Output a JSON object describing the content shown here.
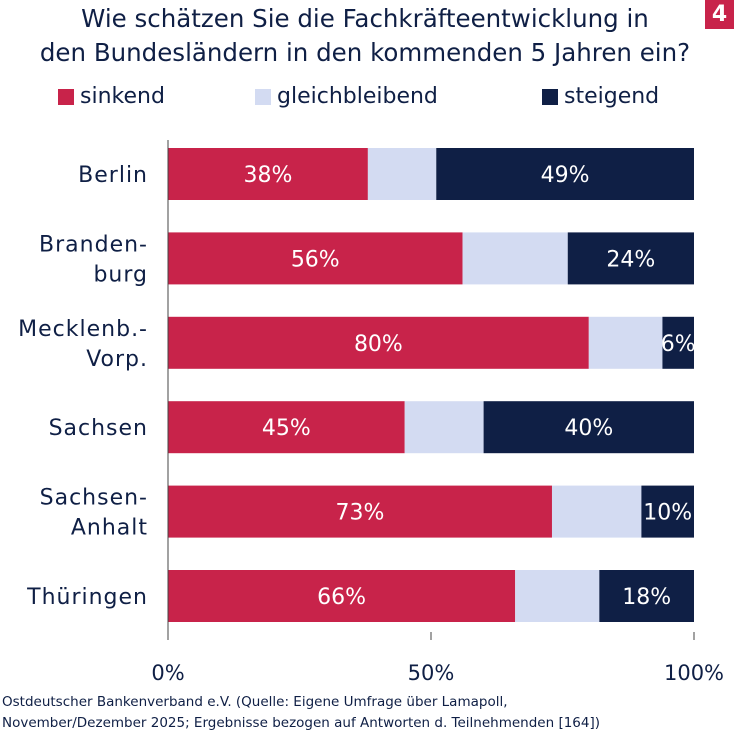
{
  "badge": "4",
  "chart_data": {
    "type": "bar",
    "orientation": "horizontal",
    "stacked": true,
    "title_lines": [
      "Wie schätzen Sie die Fachkräfteentwicklung in",
      "den Bundesländern in den kommenden 5 Jahren ein?"
    ],
    "categories": [
      [
        "Berlin"
      ],
      [
        "Branden-",
        "burg"
      ],
      [
        "Mecklenb.-",
        "Vorp."
      ],
      [
        "Sachsen"
      ],
      [
        "Sachsen-",
        "Anhalt"
      ],
      [
        "Thüringen"
      ]
    ],
    "series": [
      {
        "name": "sinkend",
        "color": "#c8234a",
        "values": [
          38,
          56,
          80,
          45,
          73,
          66
        ],
        "labels": [
          "38%",
          "56%",
          "80%",
          "45%",
          "73%",
          "66%"
        ]
      },
      {
        "name": "gleichbleibend",
        "color": "#d3dbf2",
        "values": [
          13,
          20,
          14,
          15,
          17,
          16
        ],
        "labels": [
          "",
          "",
          "",
          "",
          "",
          ""
        ]
      },
      {
        "name": "steigend",
        "color": "#0f1f45",
        "values": [
          49,
          24,
          6,
          40,
          10,
          18
        ],
        "labels": [
          "49%",
          "24%",
          "6%",
          "40%",
          "10%",
          "18%"
        ]
      }
    ],
    "xlim": [
      0,
      100
    ],
    "xticks": [
      0,
      50,
      100
    ],
    "xtick_labels": [
      "0%",
      "50%",
      "100%"
    ],
    "legend": "top",
    "grid": false
  },
  "source": [
    "Ostdeutscher Bankenverband e.V. (Quelle: Eigene Umfrage über Lamapoll,",
    "November/Dezember 2025; Ergebnisse bezogen auf Antworten d. Teilnehmenden [164])"
  ]
}
